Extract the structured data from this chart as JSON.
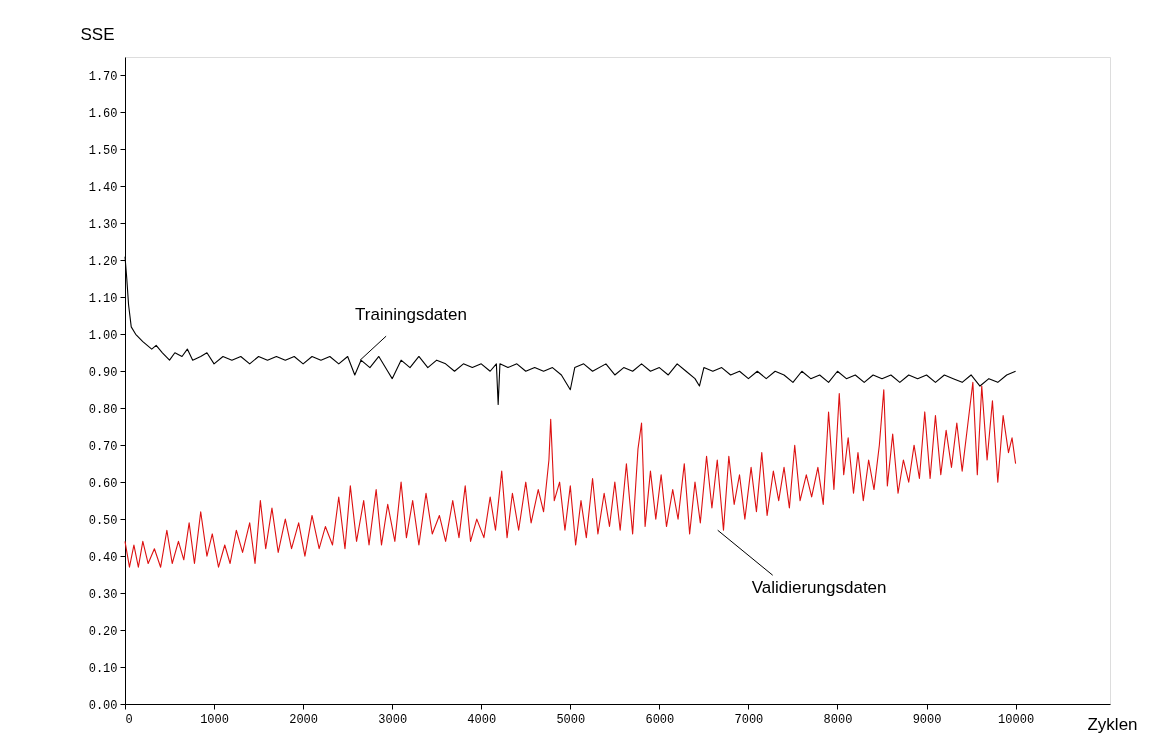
{
  "chart_data": {
    "type": "line",
    "xlabel": "Zyklen",
    "ylabel": "SSE",
    "xlim": [
      0,
      11060
    ],
    "ylim": [
      0,
      1.75
    ],
    "xticks": [
      0,
      1000,
      2000,
      3000,
      4000,
      5000,
      6000,
      7000,
      8000,
      9000,
      10000
    ],
    "yticks": [
      {
        "value": 0,
        "label": "0.00"
      },
      {
        "value": 0.1,
        "label": "0.10"
      },
      {
        "value": 0.2,
        "label": "0.20"
      },
      {
        "value": 0.3,
        "label": "0.30"
      },
      {
        "value": 0.4,
        "label": "0.40"
      },
      {
        "value": 0.5,
        "label": "0.50"
      },
      {
        "value": 0.6,
        "label": "0.60"
      },
      {
        "value": 0.7,
        "label": "0.70"
      },
      {
        "value": 0.8,
        "label": "0.80"
      },
      {
        "value": 0.9,
        "label": "0.90"
      },
      {
        "value": 1.0,
        "label": "1.00"
      },
      {
        "value": 1.1,
        "label": "1.10"
      },
      {
        "value": 1.2,
        "label": "1.20"
      },
      {
        "value": 1.3,
        "label": "1.30"
      },
      {
        "value": 1.4,
        "label": "1.40"
      },
      {
        "value": 1.5,
        "label": "1.50"
      },
      {
        "value": 1.6,
        "label": "1.60"
      },
      {
        "value": 1.7,
        "label": "1.70"
      }
    ],
    "annotations": [
      {
        "text": "Trainingsdaten",
        "x": 2640,
        "y": 0.93
      },
      {
        "text": "Validierungsdaten",
        "x": 6655,
        "y": 0.47
      }
    ],
    "series": [
      {
        "color": "#000000",
        "x": [
          0,
          20,
          40,
          70,
          120,
          200,
          300,
          350,
          420,
          500,
          560,
          640,
          700,
          760,
          850,
          920,
          1000,
          1100,
          1200,
          1300,
          1400,
          1500,
          1600,
          1700,
          1800,
          1900,
          2000,
          2100,
          2200,
          2300,
          2400,
          2500,
          2580,
          2650,
          2750,
          2850,
          2950,
          3000,
          3100,
          3200,
          3300,
          3400,
          3500,
          3600,
          3700,
          3800,
          3900,
          4000,
          4100,
          4170,
          4190,
          4210,
          4300,
          4400,
          4500,
          4600,
          4700,
          4800,
          4900,
          5000,
          5050,
          5150,
          5250,
          5400,
          5500,
          5600,
          5700,
          5800,
          5900,
          6000,
          6100,
          6200,
          6300,
          6400,
          6450,
          6500,
          6600,
          6700,
          6800,
          6900,
          7000,
          7100,
          7200,
          7300,
          7400,
          7500,
          7600,
          7700,
          7800,
          7900,
          8000,
          8100,
          8200,
          8300,
          8400,
          8500,
          8600,
          8700,
          8800,
          8900,
          9000,
          9100,
          9200,
          9300,
          9400,
          9500,
          9600,
          9700,
          9800,
          9900,
          10000
        ],
        "values": [
          1.21,
          1.15,
          1.08,
          1.02,
          1.0,
          0.98,
          0.96,
          0.97,
          0.95,
          0.93,
          0.95,
          0.94,
          0.96,
          0.93,
          0.94,
          0.95,
          0.92,
          0.94,
          0.93,
          0.94,
          0.92,
          0.94,
          0.93,
          0.94,
          0.93,
          0.94,
          0.92,
          0.94,
          0.93,
          0.94,
          0.92,
          0.94,
          0.89,
          0.93,
          0.91,
          0.94,
          0.9,
          0.88,
          0.93,
          0.91,
          0.94,
          0.91,
          0.93,
          0.92,
          0.9,
          0.92,
          0.91,
          0.92,
          0.9,
          0.92,
          0.81,
          0.92,
          0.91,
          0.92,
          0.9,
          0.91,
          0.9,
          0.91,
          0.89,
          0.85,
          0.91,
          0.92,
          0.9,
          0.92,
          0.89,
          0.91,
          0.9,
          0.92,
          0.9,
          0.91,
          0.89,
          0.92,
          0.9,
          0.88,
          0.86,
          0.91,
          0.9,
          0.91,
          0.89,
          0.9,
          0.88,
          0.9,
          0.88,
          0.9,
          0.89,
          0.87,
          0.9,
          0.88,
          0.89,
          0.87,
          0.9,
          0.88,
          0.89,
          0.87,
          0.89,
          0.88,
          0.89,
          0.87,
          0.89,
          0.88,
          0.89,
          0.87,
          0.89,
          0.88,
          0.87,
          0.89,
          0.86,
          0.88,
          0.87,
          0.89,
          0.9
        ]
      },
      {
        "color": "#dd1111",
        "x": [
          0,
          50,
          100,
          150,
          200,
          260,
          330,
          400,
          470,
          530,
          600,
          660,
          720,
          780,
          850,
          920,
          980,
          1050,
          1120,
          1180,
          1250,
          1320,
          1400,
          1460,
          1520,
          1580,
          1650,
          1720,
          1800,
          1870,
          1950,
          2020,
          2100,
          2180,
          2250,
          2330,
          2400,
          2470,
          2530,
          2600,
          2680,
          2740,
          2820,
          2880,
          2950,
          3030,
          3100,
          3160,
          3230,
          3300,
          3380,
          3450,
          3530,
          3600,
          3680,
          3750,
          3820,
          3880,
          3950,
          4030,
          4100,
          4160,
          4230,
          4290,
          4350,
          4420,
          4500,
          4560,
          4640,
          4700,
          4760,
          4780,
          4820,
          4880,
          4940,
          5000,
          5060,
          5120,
          5180,
          5250,
          5310,
          5380,
          5440,
          5500,
          5560,
          5630,
          5700,
          5760,
          5800,
          5840,
          5900,
          5960,
          6020,
          6080,
          6150,
          6210,
          6280,
          6340,
          6400,
          6460,
          6530,
          6590,
          6650,
          6720,
          6780,
          6840,
          6900,
          6960,
          7030,
          7090,
          7150,
          7210,
          7280,
          7340,
          7400,
          7460,
          7520,
          7580,
          7650,
          7710,
          7780,
          7840,
          7900,
          7960,
          8020,
          8070,
          8120,
          8180,
          8230,
          8290,
          8350,
          8410,
          8470,
          8520,
          8560,
          8620,
          8680,
          8740,
          8800,
          8860,
          8920,
          8980,
          9040,
          9100,
          9160,
          9220,
          9280,
          9340,
          9400,
          9460,
          9520,
          9570,
          9620,
          9680,
          9740,
          9800,
          9860,
          9920,
          9960,
          10000
        ],
        "values": [
          0.44,
          0.37,
          0.43,
          0.37,
          0.44,
          0.38,
          0.42,
          0.37,
          0.47,
          0.38,
          0.44,
          0.39,
          0.49,
          0.38,
          0.52,
          0.4,
          0.46,
          0.37,
          0.43,
          0.38,
          0.47,
          0.41,
          0.49,
          0.38,
          0.55,
          0.42,
          0.53,
          0.41,
          0.5,
          0.42,
          0.49,
          0.4,
          0.51,
          0.42,
          0.48,
          0.43,
          0.56,
          0.42,
          0.59,
          0.44,
          0.55,
          0.43,
          0.58,
          0.43,
          0.54,
          0.44,
          0.6,
          0.45,
          0.55,
          0.43,
          0.57,
          0.46,
          0.51,
          0.44,
          0.55,
          0.45,
          0.59,
          0.44,
          0.5,
          0.45,
          0.56,
          0.47,
          0.63,
          0.45,
          0.57,
          0.47,
          0.6,
          0.49,
          0.58,
          0.52,
          0.66,
          0.77,
          0.55,
          0.6,
          0.47,
          0.59,
          0.43,
          0.55,
          0.45,
          0.61,
          0.46,
          0.57,
          0.48,
          0.6,
          0.47,
          0.65,
          0.46,
          0.69,
          0.76,
          0.48,
          0.63,
          0.5,
          0.62,
          0.48,
          0.58,
          0.5,
          0.65,
          0.46,
          0.6,
          0.49,
          0.67,
          0.53,
          0.66,
          0.47,
          0.67,
          0.54,
          0.62,
          0.5,
          0.64,
          0.52,
          0.68,
          0.51,
          0.63,
          0.55,
          0.64,
          0.53,
          0.7,
          0.55,
          0.62,
          0.56,
          0.64,
          0.54,
          0.79,
          0.58,
          0.84,
          0.62,
          0.72,
          0.57,
          0.68,
          0.55,
          0.66,
          0.58,
          0.7,
          0.85,
          0.59,
          0.73,
          0.57,
          0.66,
          0.6,
          0.7,
          0.61,
          0.79,
          0.61,
          0.78,
          0.62,
          0.74,
          0.64,
          0.76,
          0.63,
          0.75,
          0.87,
          0.62,
          0.86,
          0.66,
          0.82,
          0.6,
          0.78,
          0.68,
          0.72,
          0.65
        ]
      }
    ]
  }
}
